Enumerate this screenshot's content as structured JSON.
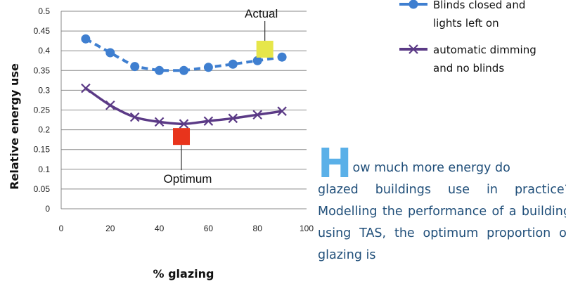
{
  "chart_data": {
    "type": "line",
    "xlabel": "% glazing",
    "ylabel": "Relative energy use",
    "xlim": [
      0,
      100
    ],
    "ylim": [
      0,
      0.5
    ],
    "x_ticks": [
      "0",
      "20",
      "40",
      "60",
      "80",
      "100"
    ],
    "y_ticks": [
      "0",
      "0.05",
      "0.1",
      "0.15",
      "0.2",
      "0.25",
      "0.3",
      "0.35",
      "0.4",
      "0.45",
      "0.5"
    ],
    "grid": "horizontal",
    "legend_position": "right",
    "series": [
      {
        "name": "Blinds closed and lights left on",
        "name_lines": [
          "Blinds closed and",
          "lights left on"
        ],
        "color": "#3f7fd0",
        "marker": "circle",
        "line_style": "dashed",
        "x": [
          10,
          20,
          30,
          40,
          50,
          60,
          70,
          80,
          90
        ],
        "y": [
          0.43,
          0.395,
          0.36,
          0.35,
          0.35,
          0.358,
          0.366,
          0.375,
          0.384
        ]
      },
      {
        "name": "automatic dimming and no blinds",
        "name_lines": [
          "automatic dimming",
          "and no blinds"
        ],
        "color": "#5b3a86",
        "marker": "x",
        "line_style": "solid",
        "x": [
          10,
          20,
          30,
          40,
          50,
          60,
          70,
          80,
          90
        ],
        "y": [
          0.305,
          0.262,
          0.232,
          0.22,
          0.215,
          0.222,
          0.229,
          0.238,
          0.247
        ]
      }
    ],
    "annotations": [
      {
        "label": "Actual",
        "x": 83,
        "y": 0.404,
        "color": "#e6e64a",
        "direction": "up"
      },
      {
        "label": "Optimum",
        "x": 49,
        "y": 0.183,
        "color": "#e8341c",
        "direction": "down"
      }
    ]
  },
  "article": {
    "dropcap": "H",
    "first_line": "ow much more energy do",
    "body": "glazed buildings use in practice? Modelling the performance of a building using TAS, the optimum proportion of glazing is"
  }
}
